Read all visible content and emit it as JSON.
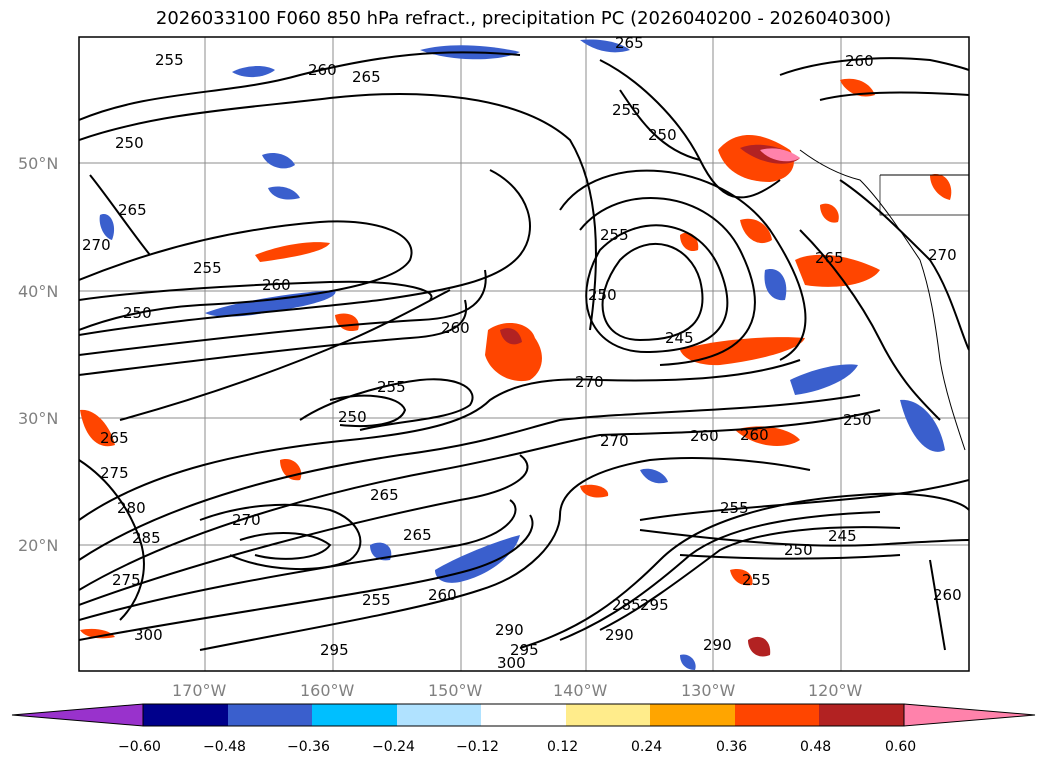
{
  "title": "2026033100 F060 850 hPa refract., precipitation PC (2026040200 - 2026040300)",
  "map": {
    "lat_ticks": [
      "50°N",
      "40°N",
      "30°N",
      "20°N"
    ],
    "lon_ticks": [
      "170°W",
      "160°W",
      "150°W",
      "140°W",
      "130°W",
      "120°W"
    ],
    "contour_labels": [
      "255",
      "260",
      "265",
      "250",
      "270",
      "265",
      "255",
      "260",
      "250",
      "255",
      "250",
      "260",
      "265",
      "255",
      "250",
      "245",
      "270",
      "260",
      "270",
      "260",
      "255",
      "250",
      "255",
      "265",
      "265",
      "280",
      "285",
      "270",
      "255",
      "260",
      "285",
      "295",
      "290",
      "290",
      "300",
      "295",
      "290",
      "255",
      "250",
      "245",
      "260",
      "265",
      "250",
      "300",
      "295",
      "275",
      "275",
      "260",
      "265",
      "270"
    ]
  },
  "colorbar": {
    "labels": [
      "−0.60",
      "−0.48",
      "−0.36",
      "−0.24",
      "−0.12",
      "0.12",
      "0.24",
      "0.36",
      "0.48",
      "0.60"
    ],
    "colors": [
      "#9932cc",
      "#00008b",
      "#3a5fcd",
      "#00bfff",
      "#b0e2ff",
      "#ffffff",
      "#ffec8b",
      "#ffa500",
      "#ff4500",
      "#b22222",
      "#ff82ab"
    ]
  }
}
